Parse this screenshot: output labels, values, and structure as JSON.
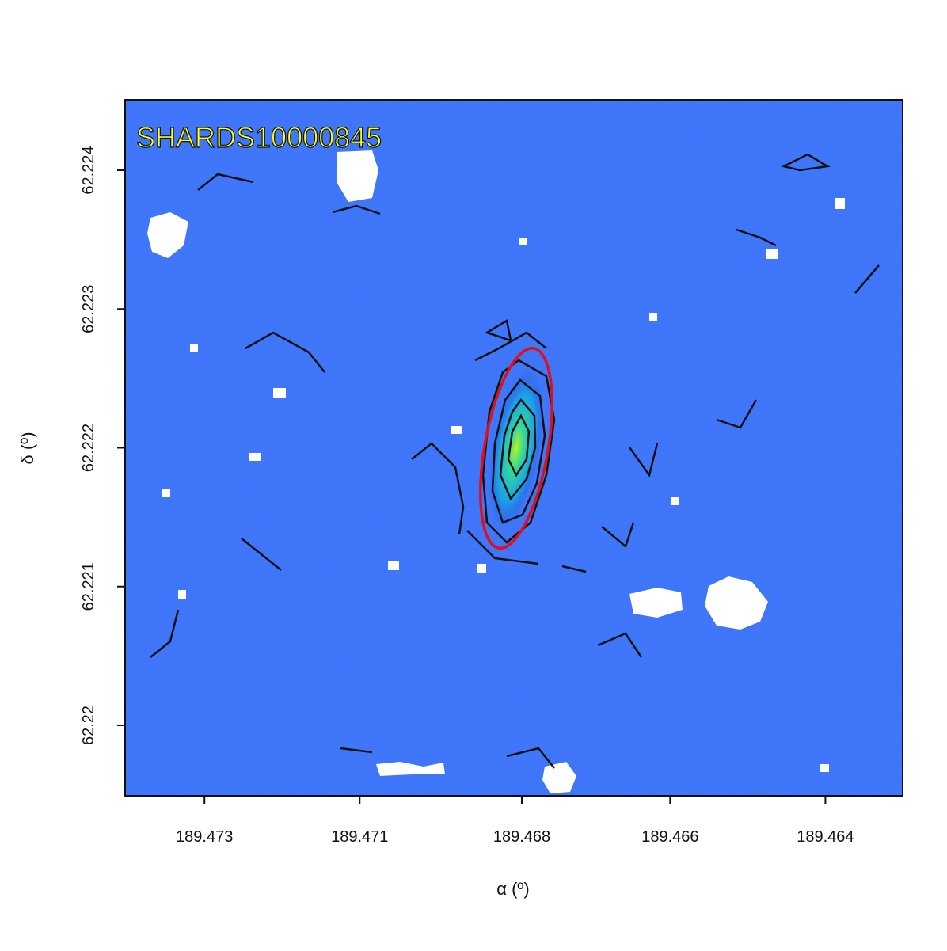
{
  "chart_data": {
    "type": "image",
    "title": "SHARDS10000845",
    "x_label": "α (º)",
    "y_label": "δ (º)",
    "xlim": [
      189.47415,
      189.46288
    ],
    "xticks": [
      189.473,
      {
        "value": 189.47075,
        "label": "189.471"
      },
      {
        "value": 189.4684,
        "label": "189.468"
      },
      {
        "value": 189.46625,
        "label": "189.466"
      },
      189.464
    ],
    "ylim": [
      62.219492,
      62.224508
    ],
    "yticks": [
      62.224,
      62.223,
      62.222,
      62.221,
      62.22
    ]
  }
}
